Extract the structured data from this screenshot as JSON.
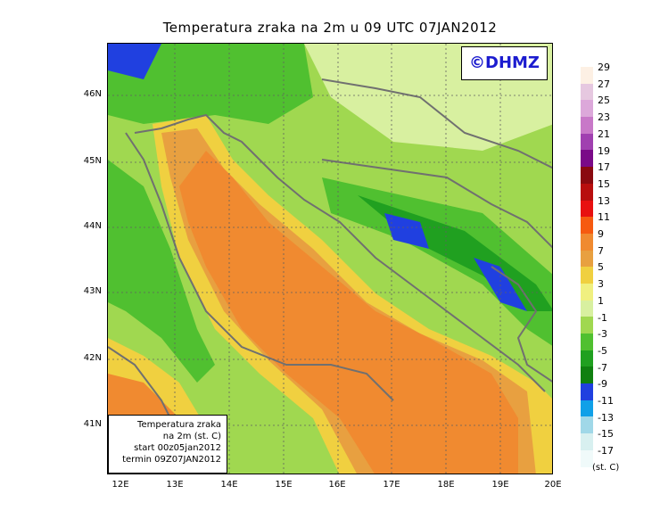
{
  "title": "Temperatura zraka na 2m u 09 UTC 07JAN2012",
  "logo": "©DHMZ",
  "info_box": {
    "line1": "Temperatura zraka",
    "line2": "na 2m (st. C)",
    "line3": "start 00z05jan2012",
    "line4": "termin 09Z07JAN2012"
  },
  "lat_labels": [
    "46N",
    "45N",
    "44N",
    "43N",
    "42N",
    "41N"
  ],
  "lon_labels": [
    "12E",
    "13E",
    "14E",
    "15E",
    "16E",
    "17E",
    "18E",
    "19E",
    "20E"
  ],
  "colorbar": {
    "labels": [
      "29",
      "27",
      "25",
      "23",
      "21",
      "19",
      "17",
      "15",
      "13",
      "11",
      "9",
      "7",
      "5",
      "3",
      "1",
      "-1",
      "-3",
      "-5",
      "-7",
      "-9",
      "-11",
      "-13",
      "-15",
      "-17"
    ],
    "colors": [
      "#fdf0e4",
      "#e6c8e0",
      "#dca8da",
      "#c878c8",
      "#a040b0",
      "#7a0a88",
      "#8a0a10",
      "#b80e0e",
      "#e81010",
      "#f65a10",
      "#f08a30",
      "#e8a040",
      "#f0d040",
      "#f0f080",
      "#d8f0a0",
      "#a0d850",
      "#50c030",
      "#20a020",
      "#108010",
      "#2040e0",
      "#10a0e8",
      "#a0d8e8",
      "#d8f0f0",
      "#f0fafa"
    ],
    "units": "(st. C)"
  },
  "colors": {
    "sea_warm": "#f08a30",
    "sea_mid": "#e8a040",
    "coast_yellow": "#f0d040",
    "land_light": "#a0d850",
    "land_green": "#50c030",
    "land_dark": "#20a020",
    "blue_cold": "#2040e0",
    "border": "#707070"
  }
}
